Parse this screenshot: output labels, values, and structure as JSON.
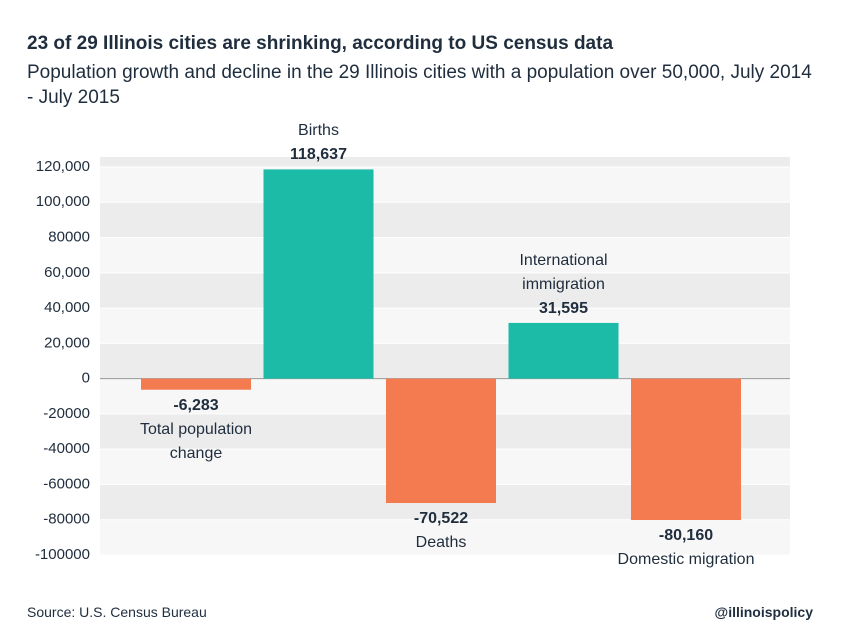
{
  "chart_data": {
    "type": "bar",
    "title": "23 of 29 Illinois cities are shrinking, according to US census data",
    "subtitle": "Population growth and decline in the 29 Illinois cities with a population over 50,000, July 2014 - July 2015",
    "categories": [
      "Total population change",
      "Births",
      "Deaths",
      "International immigration",
      "Domestic migration"
    ],
    "values": [
      -6283,
      118637,
      -70522,
      31595,
      -80160
    ],
    "value_labels": [
      "-6,283",
      "118,637",
      "-70,522",
      "31,595",
      "-80,160"
    ],
    "colors": [
      "#f47b50",
      "#1bbba8",
      "#f47b50",
      "#1bbba8",
      "#f47b50"
    ],
    "ylim": [
      -100000,
      120000
    ],
    "yticks": [
      -100000,
      -80000,
      -60000,
      -40000,
      -20000,
      0,
      {
        "value": 20000,
        "label": "20,000"
      },
      {
        "value": 40000,
        "label": "40,000"
      },
      {
        "value": 60000,
        "label": "60,000"
      },
      80000,
      {
        "value": 100000,
        "label": "100,000"
      },
      {
        "value": 120000,
        "label": "120,000"
      }
    ],
    "grid": true,
    "source": "Source: U.S. Census Bureau",
    "credit": "@illinoispolicy"
  }
}
